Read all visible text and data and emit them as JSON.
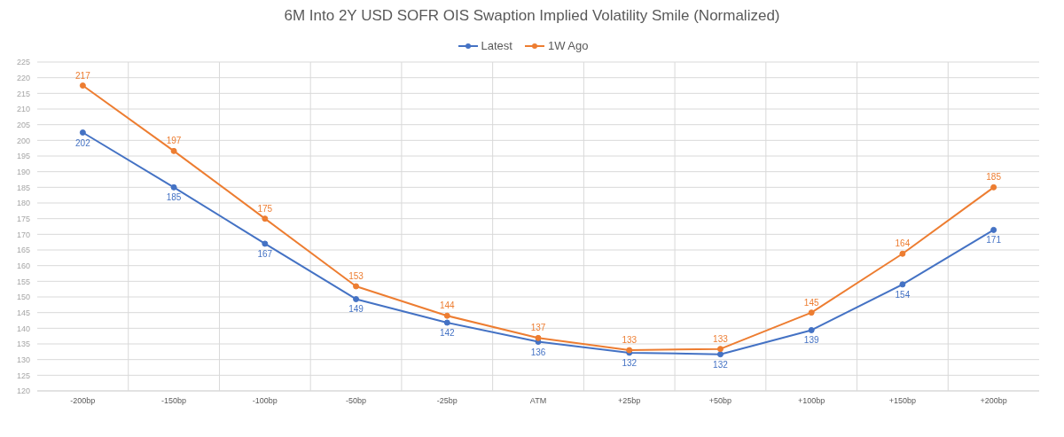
{
  "chart_data": {
    "type": "line",
    "title": "6M Into 2Y USD SOFR OIS Swaption Implied Volatility Smile (Normalized)",
    "categories": [
      "-200bp",
      "-150bp",
      "-100bp",
      "-50bp",
      "-25bp",
      "ATM",
      "+25bp",
      "+50bp",
      "+100bp",
      "+150bp",
      "+200bp"
    ],
    "series": [
      {
        "name": "Latest",
        "color": "#4472c4",
        "values": [
          202.5,
          185,
          167,
          149.3,
          141.8,
          135.7,
          132.2,
          131.7,
          139.4,
          154,
          171.4
        ],
        "value_labels": [
          "202",
          "185",
          "167",
          "149",
          "142",
          "136",
          "132",
          "132",
          "139",
          "154",
          "171"
        ]
      },
      {
        "name": "1W Ago",
        "color": "#ed7d31",
        "values": [
          217.5,
          196.6,
          175,
          153.4,
          144,
          136.9,
          133,
          133.4,
          145,
          163.8,
          185
        ],
        "value_labels": [
          "217",
          "197",
          "175",
          "153",
          "144",
          "137",
          "133",
          "133",
          "145",
          "164",
          "185"
        ]
      }
    ],
    "ylim": [
      120,
      225
    ],
    "yticks": [
      120,
      125,
      130,
      135,
      140,
      145,
      150,
      155,
      160,
      165,
      170,
      175,
      180,
      185,
      190,
      195,
      200,
      205,
      210,
      215,
      220,
      225
    ],
    "grid": true,
    "legend": "top",
    "marker": "circle",
    "line_style": "solid"
  }
}
